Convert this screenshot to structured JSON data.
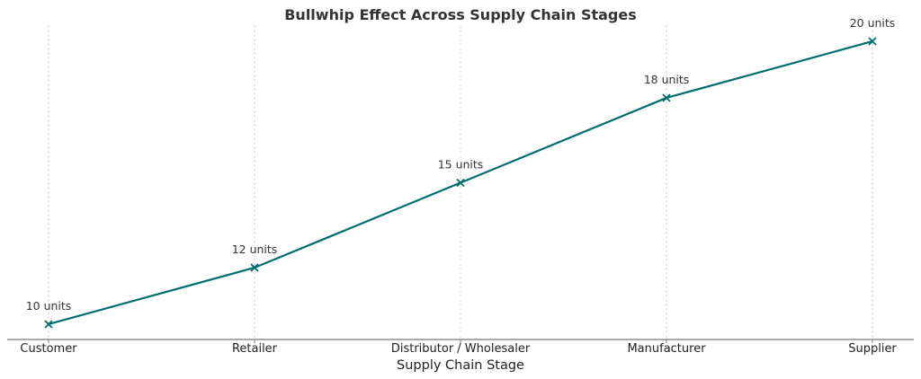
{
  "chart_data": {
    "type": "line",
    "title": "Bullwhip Effect Across Supply Chain Stages",
    "xlabel": "Supply Chain Stage",
    "ylabel": "",
    "categories": [
      "Customer",
      "Retailer",
      "Distributor / Wholesaler",
      "Manufacturer",
      "Supplier"
    ],
    "values": [
      10,
      12,
      15,
      18,
      20
    ],
    "data_labels": [
      "10 units",
      "12 units",
      "15 units",
      "18 units",
      "20 units"
    ],
    "ylim": [
      9.46,
      20.57
    ],
    "y_axis_visible": false,
    "grid": "vertical dashed",
    "marker": "x",
    "line_color": "#006d70"
  }
}
